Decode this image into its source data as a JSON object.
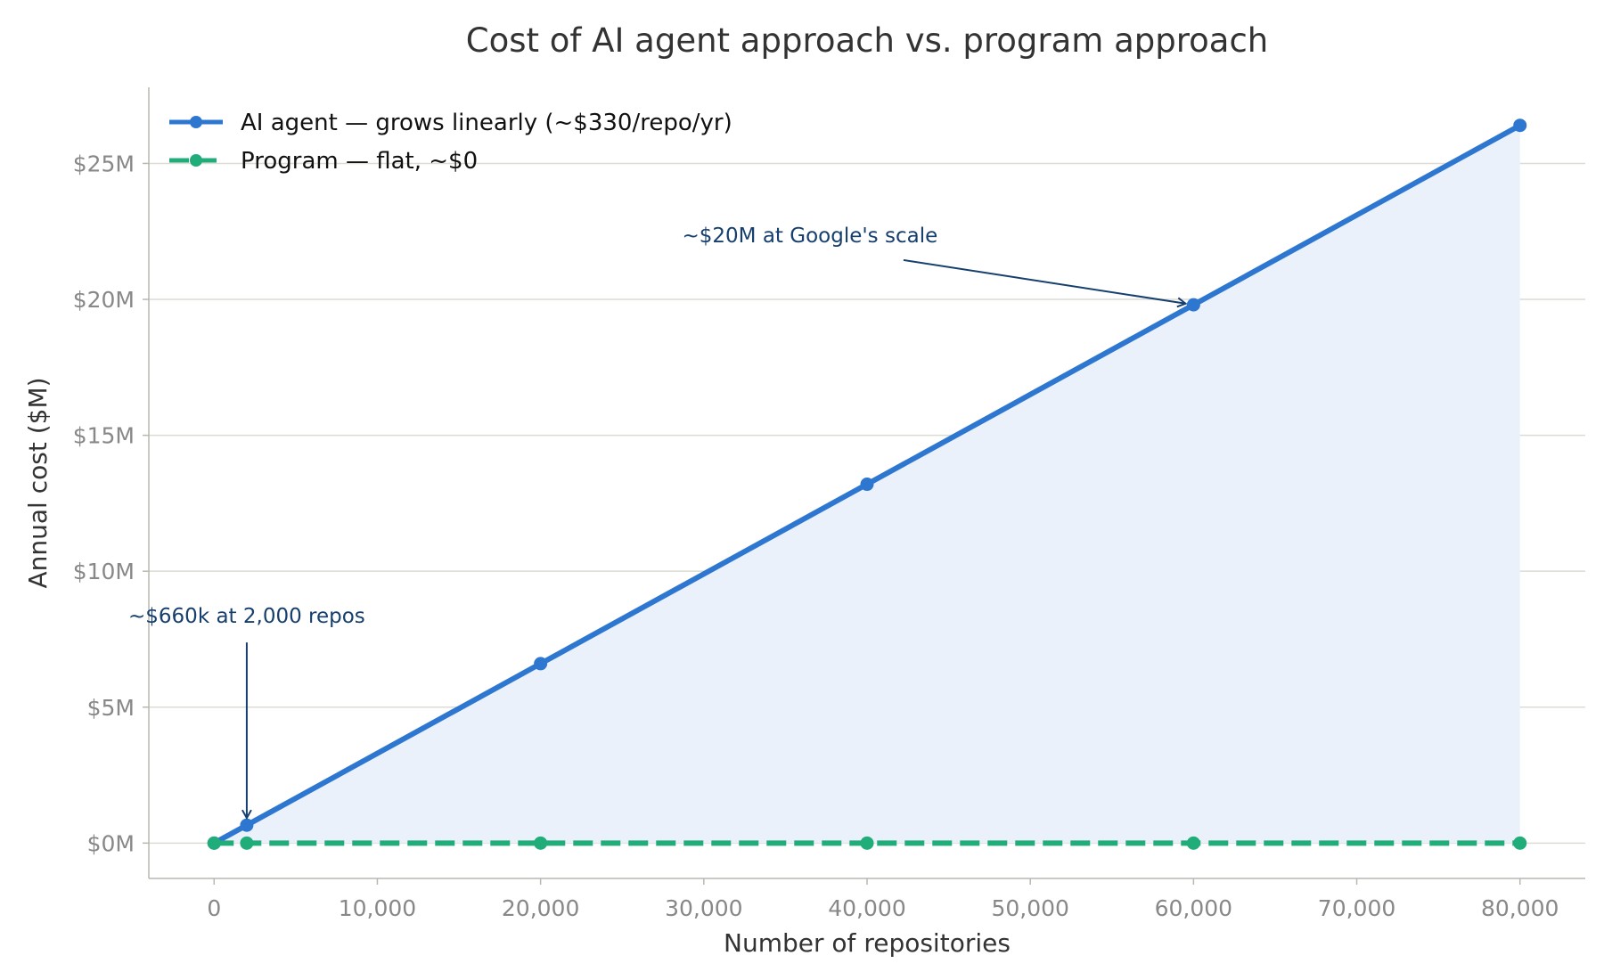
{
  "chart_data": {
    "type": "line",
    "title": "Cost of AI agent approach vs. program approach",
    "xlabel": "Number of repositories",
    "ylabel": "Annual cost ($M)",
    "xlim": [
      -4000,
      84000
    ],
    "ylim": [
      -1.3,
      27.8
    ],
    "x_ticks": [
      0,
      10000,
      20000,
      30000,
      40000,
      50000,
      60000,
      70000,
      80000
    ],
    "x_tick_labels": [
      "0",
      "10,000",
      "20,000",
      "30,000",
      "40,000",
      "50,000",
      "60,000",
      "70,000",
      "80,000"
    ],
    "y_ticks": [
      0,
      5,
      10,
      15,
      20,
      25
    ],
    "y_tick_labels": [
      "$0M",
      "$5M",
      "$10M",
      "$15M",
      "$20M",
      "$25M"
    ],
    "grid": "horizontal",
    "legend_position": "top-left",
    "series": [
      {
        "name": "AI agent — grows linearly (~$330/repo/yr)",
        "color": "#2e77d0",
        "line_style": "solid",
        "fill": "#eaf1fb",
        "x": [
          0,
          2000,
          20000,
          40000,
          60000,
          80000
        ],
        "y": [
          0,
          0.66,
          6.6,
          13.2,
          19.8,
          26.4
        ]
      },
      {
        "name": "Program — flat, ~$0",
        "color": "#20ad7a",
        "line_style": "dashed",
        "x": [
          0,
          2000,
          20000,
          40000,
          60000,
          80000
        ],
        "y": [
          0,
          0,
          0,
          0,
          0,
          0
        ]
      }
    ],
    "annotations": [
      {
        "text": "~$20M at Google's scale",
        "target_x": 60000,
        "target_y": 19.8,
        "text_x": 36500,
        "text_y": 22.1,
        "color": "#163f6e"
      },
      {
        "text": "~$660k at 2,000 repos",
        "target_x": 2000,
        "target_y": 0.66,
        "text_x": 2000,
        "text_y": 8.1,
        "color": "#163f6e"
      }
    ]
  }
}
